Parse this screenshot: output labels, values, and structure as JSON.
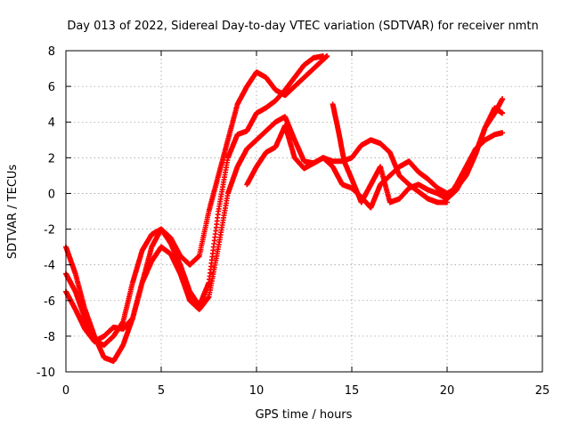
{
  "chart_data": {
    "type": "scatter",
    "title": "Day 013 of 2022, Sidereal Day-to-day VTEC variation (SDTVAR) for receiver nmtn",
    "xlabel": "GPS time / hours",
    "ylabel": "SDTVAR / TECUs",
    "xlim": [
      0,
      25
    ],
    "ylim": [
      -10,
      8
    ],
    "xticks": [
      0,
      5,
      10,
      15,
      20,
      25
    ],
    "yticks": [
      -10,
      -8,
      -6,
      -4,
      -2,
      0,
      2,
      4,
      6,
      8
    ],
    "grid": true,
    "marker": "plus",
    "color": "#ff0000",
    "series": [
      {
        "x": [
          0.0,
          0.5,
          1.0,
          1.5,
          2.0,
          2.5,
          3.0,
          3.5,
          4.0,
          4.5,
          5.0,
          5.5,
          6.0,
          6.5,
          7.0,
          7.5,
          8.0,
          8.5,
          9.0,
          9.5,
          10.0,
          10.5,
          11.0,
          11.5,
          12.0,
          12.5,
          13.0,
          13.5,
          13.7
        ],
        "y": [
          -3.0,
          -4.5,
          -6.5,
          -8.0,
          -9.2,
          -9.4,
          -8.5,
          -7.0,
          -5.0,
          -3.0,
          -2.0,
          -2.5,
          -3.5,
          -4.0,
          -3.5,
          -1.0,
          1.0,
          3.0,
          5.0,
          6.0,
          6.8,
          6.5,
          5.8,
          5.5,
          6.0,
          6.5,
          7.0,
          7.5,
          7.7
        ]
      },
      {
        "x": [
          0.0,
          0.5,
          1.0,
          1.5,
          2.0,
          2.5,
          3.0,
          3.5,
          4.0,
          4.5,
          5.0,
          5.5,
          6.0,
          6.5,
          7.0,
          7.5,
          8.0,
          8.5,
          9.0,
          9.5,
          10.0,
          10.5,
          11.0,
          11.5,
          12.0,
          12.5,
          13.0,
          13.5
        ],
        "y": [
          -4.5,
          -5.5,
          -7.0,
          -8.3,
          -8.5,
          -8.0,
          -7.2,
          -5.0,
          -3.2,
          -2.3,
          -2.0,
          -2.8,
          -4.0,
          -5.5,
          -6.3,
          -5.0,
          -1.0,
          2.0,
          3.3,
          3.5,
          4.5,
          4.8,
          5.2,
          5.8,
          6.5,
          7.2,
          7.6,
          7.7
        ]
      },
      {
        "x": [
          0.0,
          0.5,
          1.0,
          1.5,
          2.0,
          2.5,
          3.0,
          3.5,
          4.0,
          4.5,
          5.0,
          5.5,
          6.0,
          6.5,
          7.0,
          7.5,
          8.0,
          8.5,
          9.0,
          9.5,
          10.0,
          10.5,
          11.0,
          11.5,
          12.0,
          12.5,
          13.0,
          13.5,
          14.0,
          14.5,
          15.0,
          15.5,
          16.0,
          16.5,
          17.0,
          17.5,
          18.0,
          18.5,
          19.0,
          19.5,
          20.0
        ],
        "y": [
          -5.5,
          -6.5,
          -7.6,
          -8.3,
          -8.0,
          -7.5,
          -7.6,
          -7.0,
          -5.0,
          -3.8,
          -3.0,
          -3.4,
          -4.5,
          -6.0,
          -6.5,
          -5.8,
          -3.0,
          0.0,
          1.5,
          2.5,
          3.0,
          3.5,
          4.0,
          4.3,
          3.0,
          1.8,
          1.7,
          2.0,
          1.8,
          1.8,
          2.0,
          2.7,
          3.0,
          2.8,
          2.3,
          1.0,
          0.5,
          0.1,
          -0.3,
          -0.5,
          -0.5
        ]
      },
      {
        "x": [
          9.5,
          10.0,
          10.5,
          11.0,
          11.5,
          12.0,
          12.5,
          13.0,
          13.5,
          14.0,
          14.5,
          15.0,
          15.5,
          16.0,
          16.5,
          17.0,
          17.5,
          18.0,
          18.5,
          19.0,
          19.5,
          20.0,
          20.5,
          21.0,
          21.5,
          22.0,
          22.5,
          22.9
        ],
        "y": [
          0.5,
          1.5,
          2.3,
          2.6,
          3.8,
          2.0,
          1.4,
          1.7,
          2.0,
          1.5,
          0.5,
          0.3,
          -0.2,
          -0.8,
          0.5,
          1.0,
          1.5,
          1.8,
          1.2,
          0.8,
          0.3,
          -0.3,
          0.5,
          1.5,
          2.5,
          3.0,
          3.3,
          3.4
        ]
      },
      {
        "x": [
          14.0,
          14.3,
          14.6,
          15.0,
          15.5,
          16.0,
          16.5,
          17.0,
          17.5,
          18.0,
          18.5,
          19.0,
          19.5,
          20.0,
          20.5,
          21.0,
          21.5,
          22.0,
          22.5,
          22.9
        ],
        "y": [
          5.0,
          3.5,
          1.8,
          0.8,
          -0.5,
          0.5,
          1.5,
          -0.5,
          -0.3,
          0.3,
          0.5,
          0.2,
          0.0,
          -0.3,
          0.2,
          1.2,
          2.3,
          3.7,
          4.5,
          5.3
        ]
      },
      {
        "x": [
          19.5,
          20.0,
          20.5,
          21.0,
          21.5,
          22.0,
          22.5,
          22.9
        ],
        "y": [
          0.3,
          0.0,
          0.3,
          1.0,
          2.2,
          3.7,
          4.8,
          4.5
        ]
      }
    ]
  }
}
